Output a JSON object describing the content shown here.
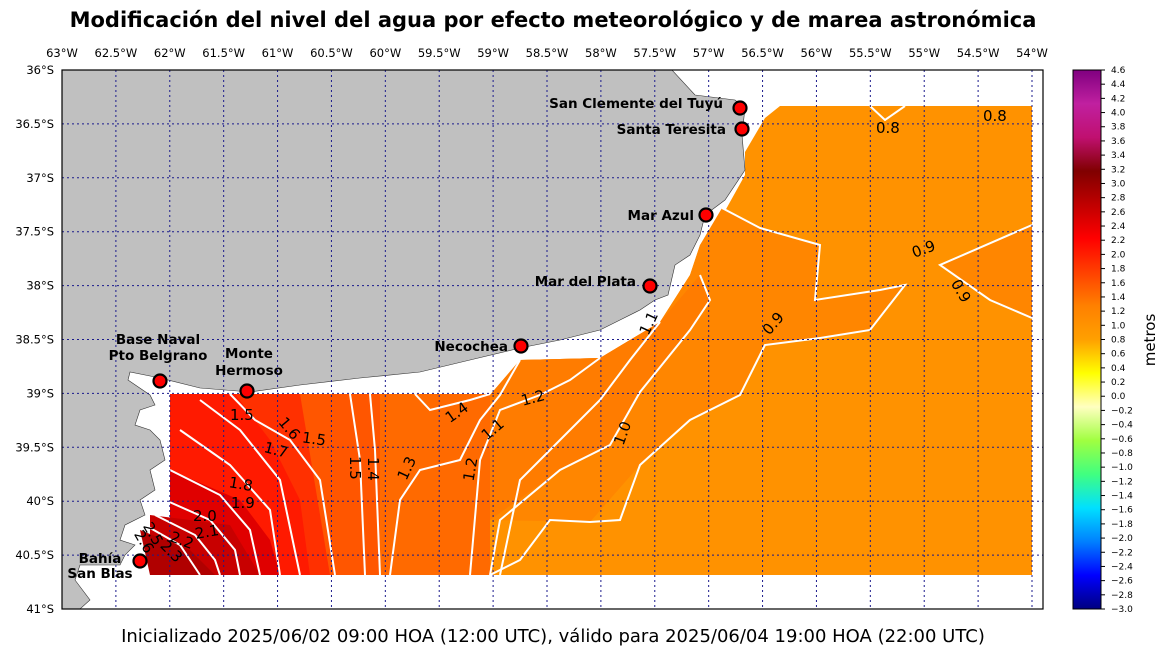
{
  "title": "Modificación del nivel del agua por efecto meteorológico y de marea astronómica",
  "footer": "Inicializado 2025/06/02 09:00 HOA (12:00 UTC), válido para 2025/06/04 19:00 HOA (22:00 UTC)",
  "lon_labels": [
    "63°W",
    "62.5°W",
    "62°W",
    "61.5°W",
    "61°W",
    "60.5°W",
    "60°W",
    "59.5°W",
    "59°W",
    "58.5°W",
    "58°W",
    "57.5°W",
    "57°W",
    "56.5°W",
    "56°W",
    "55.5°W",
    "55°W",
    "54.5°W",
    "54°W"
  ],
  "lat_labels": [
    "36°S",
    "36.5°S",
    "37°S",
    "37.5°S",
    "38°S",
    "38.5°S",
    "39°S",
    "39.5°S",
    "40°S",
    "40.5°S",
    "41°S"
  ],
  "cities": [
    {
      "id": "san-clemente",
      "lines": [
        "San Clemente del Tuyú"
      ]
    },
    {
      "id": "santa-teresita",
      "lines": [
        "Santa Teresita"
      ]
    },
    {
      "id": "mar-azul",
      "lines": [
        "Mar Azul"
      ]
    },
    {
      "id": "mar-del-plata",
      "lines": [
        "Mar del Plata"
      ]
    },
    {
      "id": "necochea",
      "lines": [
        "Necochea"
      ]
    },
    {
      "id": "base-naval",
      "lines": [
        "Base Naval",
        "Pto Belgrano"
      ]
    },
    {
      "id": "monte-hermoso",
      "lines": [
        "Monte",
        "Hermoso"
      ]
    },
    {
      "id": "bahia-san-blas",
      "lines": [
        "Bahía",
        "San Blas"
      ]
    }
  ],
  "contour_labels": [
    "0.8",
    "0.8",
    "0.9",
    "0.9",
    "0.9",
    "1.1",
    "1.0",
    "1.2",
    "1.1",
    "1.4",
    "1.3",
    "1.2",
    "1.5",
    "1.4",
    "1.5",
    "1.6",
    "1.5",
    "1.7",
    "1.8",
    "1.9",
    "2.0",
    "2.1",
    "2.2",
    "2.3",
    "2.5",
    "2.6"
  ],
  "colorbar": {
    "label": "metros",
    "ticks": [
      "4.6",
      "4.4",
      "4.2",
      "4.0",
      "3.8",
      "3.6",
      "3.4",
      "3.2",
      "3.0",
      "2.8",
      "2.6",
      "2.4",
      "2.2",
      "2.0",
      "1.8",
      "1.6",
      "1.4",
      "1.2",
      "1.0",
      "0.8",
      "0.6",
      "0.4",
      "0.2",
      "0.0",
      "−0.2",
      "−0.4",
      "−0.6",
      "−0.8",
      "−1.0",
      "−1.2",
      "−1.4",
      "−1.6",
      "−1.8",
      "−2.0",
      "−2.2",
      "−2.4",
      "−2.6",
      "−2.8",
      "−3.0"
    ],
    "range": [
      -3.0,
      4.6
    ],
    "colors": [
      "#000080",
      "#0000ff",
      "#0080ff",
      "#00e0ff",
      "#40ff80",
      "#a0ff40",
      "#ffffc0",
      "#ffff00",
      "#ffa000",
      "#ff8000",
      "#ff4000",
      "#ff0000",
      "#c00000",
      "#800000",
      "#c01070",
      "#c020a0",
      "#800080"
    ]
  },
  "colors": {
    "land": "#c0c0c0",
    "grid": "#1a1a8c",
    "contour": "#ffffff",
    "marker": "#ff0000",
    "surge_08": "#ff9200",
    "surge_09": "#ff8600",
    "surge_10": "#ff7c00",
    "surge_12": "#ff6a00",
    "surge_14": "#ff5600",
    "surge_16": "#ff3000",
    "surge_18": "#ff1a00",
    "surge_20": "#e00000",
    "surge_22": "#c80000",
    "surge_24": "#b00000"
  }
}
